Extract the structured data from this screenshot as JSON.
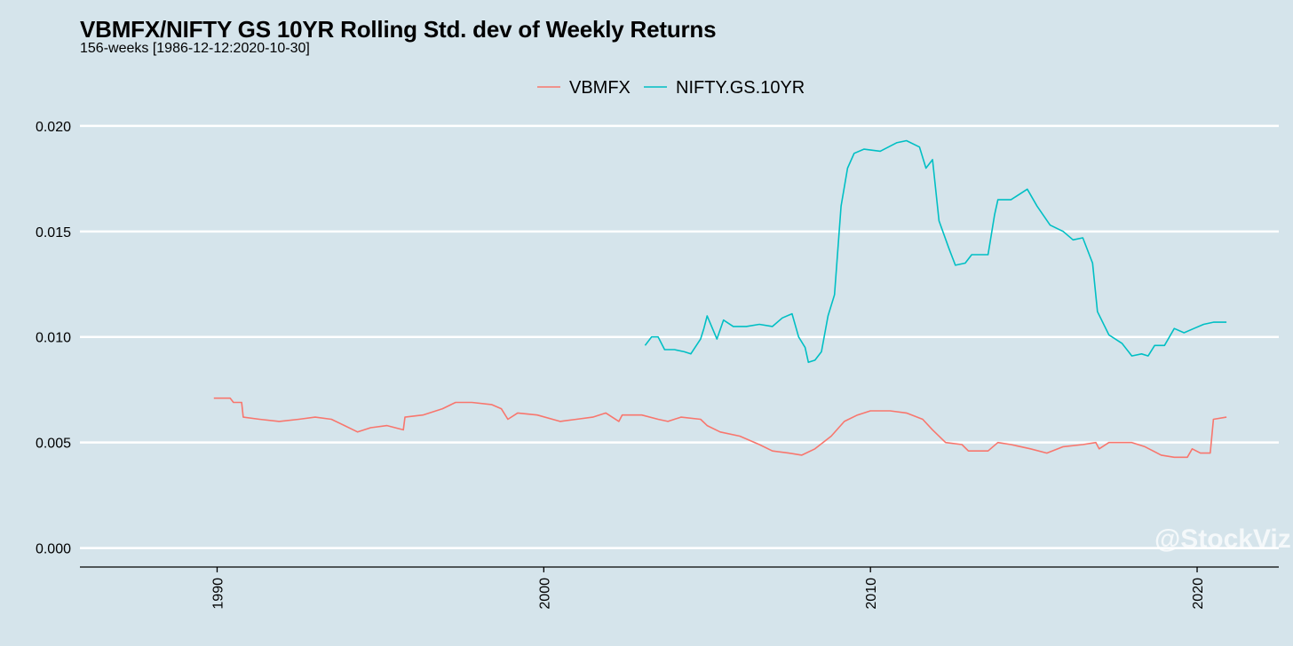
{
  "chart_data": {
    "type": "line",
    "title": "VBMFX/NIFTY GS 10YR Rolling Std. dev of Weekly Returns",
    "subtitle": "156-weeks [1986-12-12:2020-10-30]",
    "xlabel": "",
    "ylabel": "",
    "xlim": [
      1985.8,
      2022.5
    ],
    "ylim": [
      -0.0009,
      0.0205
    ],
    "x_ticks": [
      1990,
      2000,
      2010,
      2020
    ],
    "y_ticks": [
      0.0,
      0.005,
      0.01,
      0.015,
      0.02
    ],
    "x_tick_labels": [
      "1990",
      "2000",
      "2010",
      "2020"
    ],
    "y_tick_labels": [
      "0.000",
      "0.005",
      "0.010",
      "0.015",
      "0.020"
    ],
    "grid": "horizontal",
    "legend_position": "top",
    "watermark": "@StockViz",
    "series": [
      {
        "name": "VBMFX",
        "color": "#f8766d",
        "points": [
          [
            1989.9,
            0.0071
          ],
          [
            1990.4,
            0.0071
          ],
          [
            1990.5,
            0.0069
          ],
          [
            1990.75,
            0.0069
          ],
          [
            1990.8,
            0.0062
          ],
          [
            1991.3,
            0.0061
          ],
          [
            1991.9,
            0.006
          ],
          [
            1992.5,
            0.0061
          ],
          [
            1993.0,
            0.0062
          ],
          [
            1993.5,
            0.0061
          ],
          [
            1993.9,
            0.0058
          ],
          [
            1994.3,
            0.0055
          ],
          [
            1994.7,
            0.0057
          ],
          [
            1995.2,
            0.0058
          ],
          [
            1995.7,
            0.0056
          ],
          [
            1995.75,
            0.0062
          ],
          [
            1996.3,
            0.0063
          ],
          [
            1996.9,
            0.0066
          ],
          [
            1997.3,
            0.0069
          ],
          [
            1997.8,
            0.0069
          ],
          [
            1998.4,
            0.0068
          ],
          [
            1998.7,
            0.0066
          ],
          [
            1998.9,
            0.0061
          ],
          [
            1999.2,
            0.0064
          ],
          [
            1999.8,
            0.0063
          ],
          [
            2000.5,
            0.006
          ],
          [
            2001.0,
            0.0061
          ],
          [
            2001.5,
            0.0062
          ],
          [
            2001.9,
            0.0064
          ],
          [
            2002.3,
            0.006
          ],
          [
            2002.4,
            0.0063
          ],
          [
            2003.0,
            0.0063
          ],
          [
            2003.5,
            0.0061
          ],
          [
            2003.8,
            0.006
          ],
          [
            2004.2,
            0.0062
          ],
          [
            2004.8,
            0.0061
          ],
          [
            2005.0,
            0.0058
          ],
          [
            2005.4,
            0.0055
          ],
          [
            2006.0,
            0.0053
          ],
          [
            2006.6,
            0.0049
          ],
          [
            2007.0,
            0.0046
          ],
          [
            2007.5,
            0.0045
          ],
          [
            2007.9,
            0.0044
          ],
          [
            2008.3,
            0.0047
          ],
          [
            2008.8,
            0.0053
          ],
          [
            2009.2,
            0.006
          ],
          [
            2009.6,
            0.0063
          ],
          [
            2010.0,
            0.0065
          ],
          [
            2010.6,
            0.0065
          ],
          [
            2011.1,
            0.0064
          ],
          [
            2011.6,
            0.0061
          ],
          [
            2011.9,
            0.0056
          ],
          [
            2012.3,
            0.005
          ],
          [
            2012.8,
            0.0049
          ],
          [
            2013.0,
            0.0046
          ],
          [
            2013.6,
            0.0046
          ],
          [
            2013.9,
            0.005
          ],
          [
            2014.3,
            0.0049
          ],
          [
            2014.9,
            0.0047
          ],
          [
            2015.4,
            0.0045
          ],
          [
            2015.9,
            0.0048
          ],
          [
            2016.5,
            0.0049
          ],
          [
            2016.9,
            0.005
          ],
          [
            2017.0,
            0.0047
          ],
          [
            2017.3,
            0.005
          ],
          [
            2018.0,
            0.005
          ],
          [
            2018.4,
            0.0048
          ],
          [
            2018.9,
            0.0044
          ],
          [
            2019.3,
            0.0043
          ],
          [
            2019.7,
            0.0043
          ],
          [
            2019.85,
            0.0047
          ],
          [
            2020.1,
            0.0045
          ],
          [
            2020.4,
            0.0045
          ],
          [
            2020.5,
            0.0061
          ],
          [
            2020.9,
            0.0062
          ]
        ]
      },
      {
        "name": "NIFTY.GS.10YR",
        "color": "#00bfc4",
        "points": [
          [
            2003.1,
            0.0096
          ],
          [
            2003.3,
            0.01
          ],
          [
            2003.5,
            0.01
          ],
          [
            2003.7,
            0.0094
          ],
          [
            2004.0,
            0.0094
          ],
          [
            2004.3,
            0.0093
          ],
          [
            2004.5,
            0.0092
          ],
          [
            2004.8,
            0.0099
          ],
          [
            2004.9,
            0.0104
          ],
          [
            2005.0,
            0.011
          ],
          [
            2005.3,
            0.0099
          ],
          [
            2005.5,
            0.0108
          ],
          [
            2005.8,
            0.0105
          ],
          [
            2006.2,
            0.0105
          ],
          [
            2006.6,
            0.0106
          ],
          [
            2007.0,
            0.0105
          ],
          [
            2007.3,
            0.0109
          ],
          [
            2007.6,
            0.0111
          ],
          [
            2007.8,
            0.01
          ],
          [
            2008.0,
            0.0095
          ],
          [
            2008.1,
            0.0088
          ],
          [
            2008.3,
            0.0089
          ],
          [
            2008.5,
            0.0093
          ],
          [
            2008.7,
            0.011
          ],
          [
            2008.9,
            0.012
          ],
          [
            2009.1,
            0.0162
          ],
          [
            2009.3,
            0.018
          ],
          [
            2009.5,
            0.0187
          ],
          [
            2009.8,
            0.0189
          ],
          [
            2010.3,
            0.0188
          ],
          [
            2010.8,
            0.0192
          ],
          [
            2011.1,
            0.0193
          ],
          [
            2011.5,
            0.019
          ],
          [
            2011.7,
            0.018
          ],
          [
            2011.9,
            0.0184
          ],
          [
            2012.1,
            0.0155
          ],
          [
            2012.4,
            0.0142
          ],
          [
            2012.6,
            0.0134
          ],
          [
            2012.9,
            0.0135
          ],
          [
            2013.1,
            0.0139
          ],
          [
            2013.6,
            0.0139
          ],
          [
            2013.8,
            0.0158
          ],
          [
            2013.9,
            0.0165
          ],
          [
            2014.3,
            0.0165
          ],
          [
            2014.8,
            0.017
          ],
          [
            2015.1,
            0.0162
          ],
          [
            2015.5,
            0.0153
          ],
          [
            2015.9,
            0.015
          ],
          [
            2016.2,
            0.0146
          ],
          [
            2016.5,
            0.0147
          ],
          [
            2016.8,
            0.0135
          ],
          [
            2016.95,
            0.0112
          ],
          [
            2017.3,
            0.0101
          ],
          [
            2017.7,
            0.0097
          ],
          [
            2018.0,
            0.0091
          ],
          [
            2018.3,
            0.0092
          ],
          [
            2018.5,
            0.0091
          ],
          [
            2018.7,
            0.0096
          ],
          [
            2019.0,
            0.0096
          ],
          [
            2019.3,
            0.0104
          ],
          [
            2019.6,
            0.0102
          ],
          [
            2019.9,
            0.0104
          ],
          [
            2020.2,
            0.0106
          ],
          [
            2020.5,
            0.0107
          ],
          [
            2020.9,
            0.0107
          ]
        ]
      }
    ]
  }
}
